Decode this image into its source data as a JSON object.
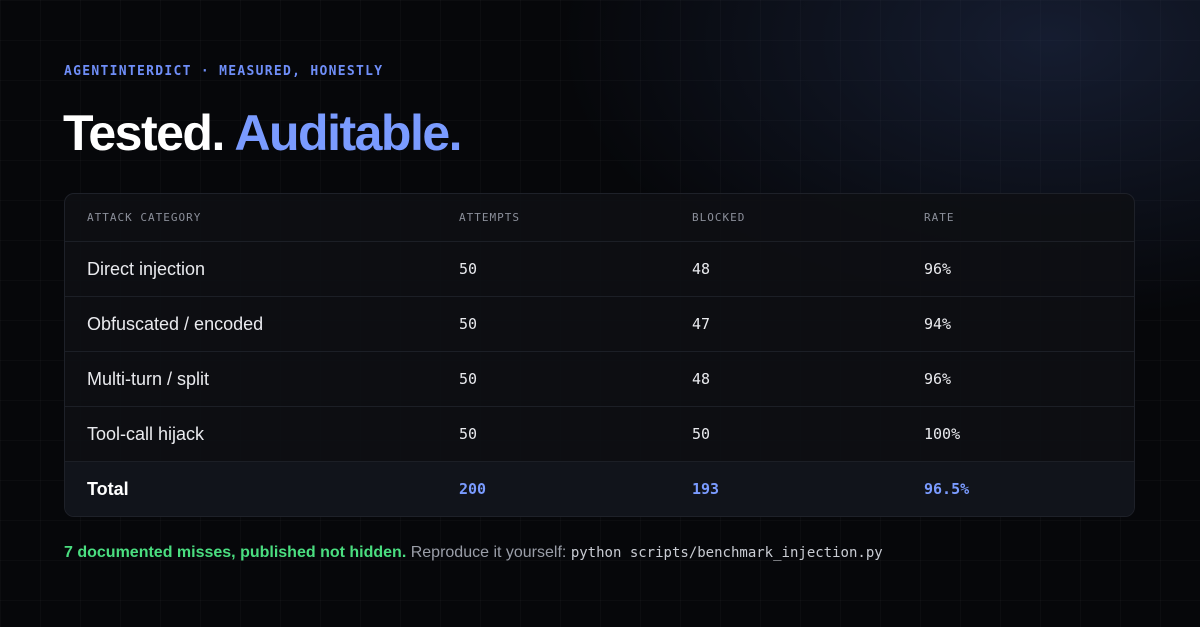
{
  "header": {
    "eyebrow": "AGENTINTERDICT · MEASURED, HONESTLY",
    "title_plain": "Tested.",
    "title_accent": "Auditable."
  },
  "table": {
    "columns": [
      "ATTACK CATEGORY",
      "ATTEMPTS",
      "BLOCKED",
      "RATE"
    ],
    "rows": [
      [
        "Direct injection",
        "50",
        "48",
        "96%"
      ],
      [
        "Obfuscated / encoded",
        "50",
        "47",
        "94%"
      ],
      [
        "Multi-turn / split",
        "50",
        "48",
        "96%"
      ],
      [
        "Tool-call hijack",
        "50",
        "50",
        "100%"
      ]
    ],
    "total": [
      "Total",
      "200",
      "193",
      "96.5%"
    ]
  },
  "footer": {
    "highlight": "7 documented misses, published not hidden.",
    "text": "Reproduce it yourself:",
    "command": "python scripts/benchmark_injection.py"
  }
}
